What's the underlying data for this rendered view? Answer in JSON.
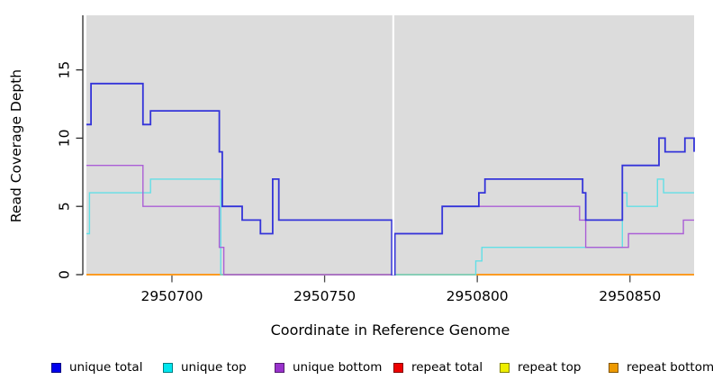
{
  "chart_data": {
    "type": "line",
    "subtype": "step",
    "title": "",
    "xlabel": "Coordinate in Reference Genome",
    "ylabel": "Read Coverage Depth",
    "xlim": [
      2950672,
      2950871
    ],
    "ylim": [
      0,
      19
    ],
    "x_ticks": [
      2950700,
      2950750,
      2950800,
      2950850
    ],
    "y_ticks": [
      0,
      5,
      10,
      15
    ],
    "plot_background": "#dcdcdc",
    "grid": "off",
    "legend_position": "bottom",
    "gap": {
      "x_start": 2950772,
      "x_end": 2950773,
      "color": "#ffffff"
    },
    "series": [
      {
        "name": "repeat top",
        "legend_color": "#eeee00",
        "line_color": "#e8e833",
        "step_points": [
          [
            2950672,
            0
          ],
          [
            2950871,
            0
          ]
        ]
      },
      {
        "name": "repeat total",
        "legend_color": "#ee0000",
        "line_color": "#dd2222",
        "step_points": [
          [
            2950672,
            0
          ],
          [
            2950871,
            0
          ]
        ]
      },
      {
        "name": "repeat bottom",
        "legend_color": "#ee9a00",
        "line_color": "#ff9e1b",
        "step_points": [
          [
            2950672,
            0
          ],
          [
            2950871,
            0
          ]
        ]
      },
      {
        "name": "unique top",
        "legend_color": "#00e6ee",
        "line_color": "#63dfe6",
        "step_points": [
          [
            2950672,
            3
          ],
          [
            2950673,
            6
          ],
          [
            2950693,
            7
          ],
          [
            2950716,
            0
          ],
          [
            2950799.5,
            1
          ],
          [
            2950801.5,
            2
          ],
          [
            2950847.5,
            6
          ],
          [
            2950849,
            5
          ],
          [
            2950859,
            7
          ],
          [
            2950861,
            6
          ],
          [
            2950871,
            6
          ]
        ]
      },
      {
        "name": "unique bottom",
        "legend_color": "#9932cc",
        "line_color": "#ab5fd6",
        "step_points": [
          [
            2950672,
            8
          ],
          [
            2950690.5,
            5
          ],
          [
            2950715.5,
            2
          ],
          [
            2950717,
            0
          ],
          [
            2950773,
            3
          ],
          [
            2950788.5,
            5
          ],
          [
            2950833.5,
            4
          ],
          [
            2950835.5,
            2
          ],
          [
            2950849.5,
            3
          ],
          [
            2950867.5,
            4
          ],
          [
            2950871,
            4
          ]
        ]
      },
      {
        "name": "unique total",
        "legend_color": "#0000ee",
        "line_color": "#3434d9",
        "step_points": [
          [
            2950672,
            11
          ],
          [
            2950673.5,
            14
          ],
          [
            2950690.5,
            11
          ],
          [
            2950693,
            12
          ],
          [
            2950715.5,
            9
          ],
          [
            2950716.5,
            5
          ],
          [
            2950723,
            4
          ],
          [
            2950729,
            3
          ],
          [
            2950733,
            7
          ],
          [
            2950735,
            4
          ],
          [
            2950772,
            0
          ],
          [
            2950773,
            3
          ],
          [
            2950788.5,
            5
          ],
          [
            2950800.5,
            6
          ],
          [
            2950802.5,
            7
          ],
          [
            2950834.5,
            6
          ],
          [
            2950835.5,
            4
          ],
          [
            2950847.5,
            8
          ],
          [
            2950859.5,
            10
          ],
          [
            2950861.5,
            9
          ],
          [
            2950868,
            10
          ],
          [
            2950871,
            9
          ]
        ]
      }
    ],
    "legend_order": [
      "unique total",
      "unique top",
      "unique bottom",
      "repeat total",
      "repeat top",
      "repeat bottom"
    ]
  }
}
